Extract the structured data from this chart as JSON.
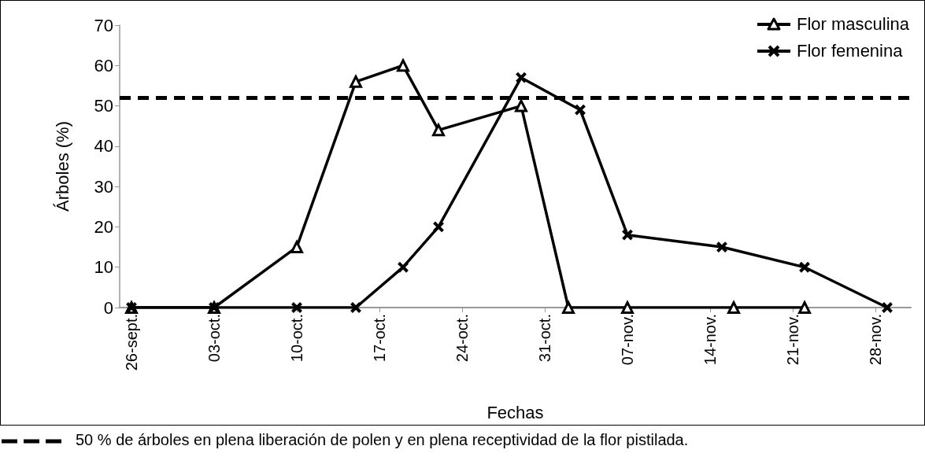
{
  "chart_data": {
    "type": "line",
    "xlabel": "Fechas",
    "ylabel": "Árboles (%)",
    "series": [
      {
        "name": "Flor masculina",
        "color": "#000000",
        "marker": "triangle",
        "line_style": "solid",
        "x": [
          "--09-26",
          "--10-03",
          "--10-10",
          "--10-15",
          "--10-19",
          "--10-22",
          "--10-29",
          "--11-02",
          "--11-07",
          "--11-16",
          "--11-22"
        ],
        "values": [
          0,
          0,
          15,
          56,
          60,
          44,
          50,
          0,
          0,
          0,
          0
        ]
      },
      {
        "name": "Flor femenina",
        "color": "#000000",
        "marker": "cross",
        "line_style": "solid",
        "x": [
          "--09-26",
          "--10-03",
          "--10-10",
          "--10-15",
          "--10-19",
          "--10-22",
          "--10-29",
          "--11-03",
          "--11-07",
          "--11-15",
          "--11-22",
          "--11-29"
        ],
        "values": [
          0,
          0,
          0,
          0,
          10,
          20,
          57,
          49,
          18,
          15,
          10,
          0
        ]
      }
    ],
    "xlim": [
      "--09-25",
      "--12-01"
    ],
    "xticks": [
      {
        "value": "--09-26",
        "label": "26-sept."
      },
      {
        "value": "--10-03",
        "label": "03-oct."
      },
      {
        "value": "--10-10",
        "label": "10-oct."
      },
      {
        "value": "--10-17",
        "label": "17-oct."
      },
      {
        "value": "--10-24",
        "label": "24-oct."
      },
      {
        "value": "--10-31",
        "label": "31-oct."
      },
      {
        "value": "--11-07",
        "label": "07-nov."
      },
      {
        "value": "--11-14",
        "label": "14-nov."
      },
      {
        "value": "--11-21",
        "label": "21-nov."
      },
      {
        "value": "--11-28",
        "label": "28-nov."
      }
    ],
    "ylim": [
      0,
      70
    ],
    "yticks": [
      0,
      10,
      20,
      30,
      40,
      50,
      60,
      70
    ],
    "ref_lines": [
      {
        "axis": "y",
        "value": 52,
        "color": "#000000",
        "line_style": "dashed"
      }
    ],
    "annotations": [
      "50 % de árboles en plena liberación de polen y en plena receptividad de la flor pistilada."
    ],
    "grid": false,
    "legend": "top right"
  }
}
